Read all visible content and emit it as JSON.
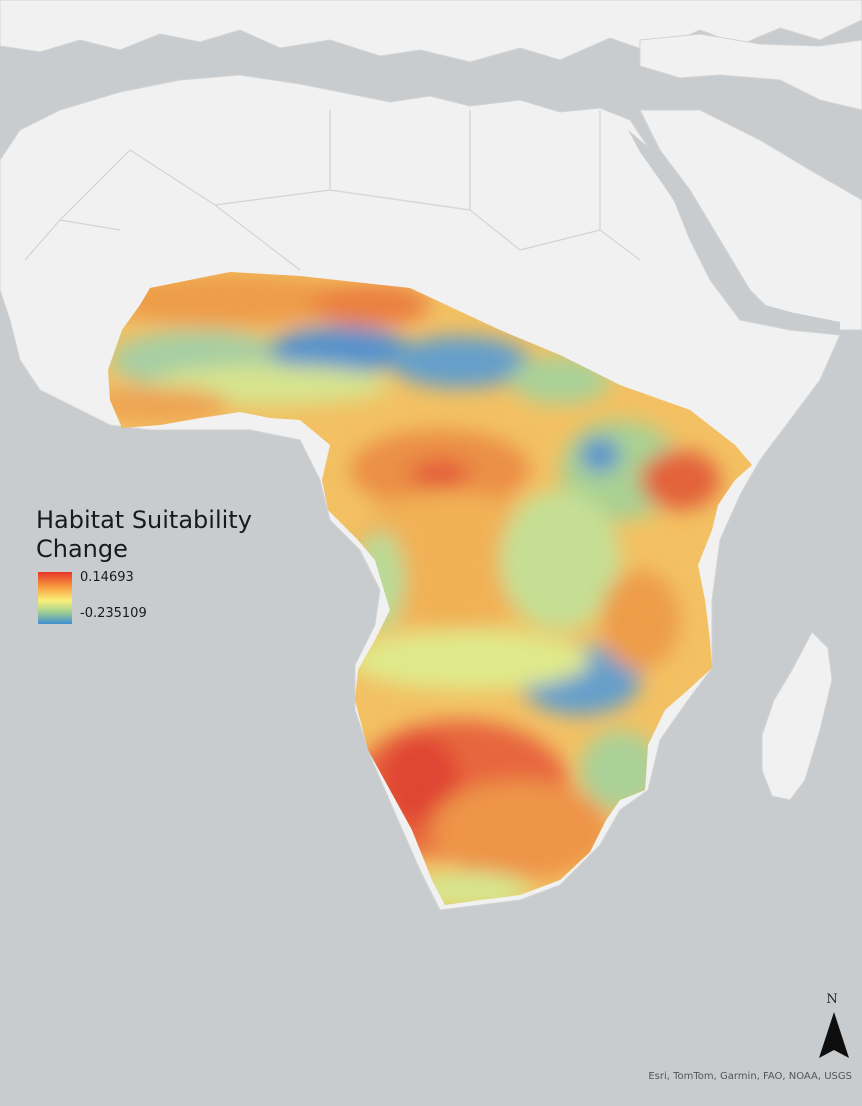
{
  "legend": {
    "title_line1": "Habitat Suitability",
    "title_line2": "Change",
    "max_value": "0.14693",
    "min_value": "-0.235109"
  },
  "north_arrow": {
    "label": "N"
  },
  "attribution": "Esri, TomTom, Garmin, FAO, NOAA, USGS",
  "colors": {
    "ocean": "#c9ccce",
    "land": "#f1f1f1",
    "boundaries": "#d3d3d3",
    "ramp_high": "#e8362a",
    "ramp_mid_high": "#f7a13f",
    "ramp_mid": "#fbf07c",
    "ramp_mid_low": "#a9d38d",
    "ramp_low": "#3f8fd0"
  }
}
